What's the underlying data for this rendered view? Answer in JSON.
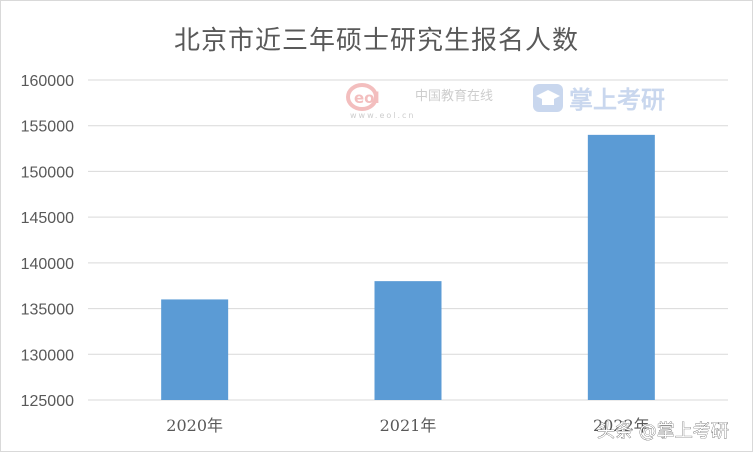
{
  "chart_data": {
    "type": "bar",
    "title": "北京市近三年硕士研究生报名人数",
    "categories": [
      "2020年",
      "2021年",
      "2022年"
    ],
    "values": [
      136000,
      138000,
      154000
    ],
    "ylim": [
      125000,
      160000
    ],
    "yticks": [
      125000,
      130000,
      135000,
      140000,
      145000,
      150000,
      155000,
      160000
    ],
    "grid": true,
    "bar_color": "#5b9bd5",
    "grid_color": "#d9d9d9"
  },
  "watermark": {
    "eol_logo": "eol",
    "eol_cn": "中国教育在线",
    "eol_url": "www.eol.cn",
    "brand": "掌上考研",
    "brand_icon": "graduation-cap-icon"
  },
  "credit": {
    "text": "头条 @掌上考研"
  }
}
